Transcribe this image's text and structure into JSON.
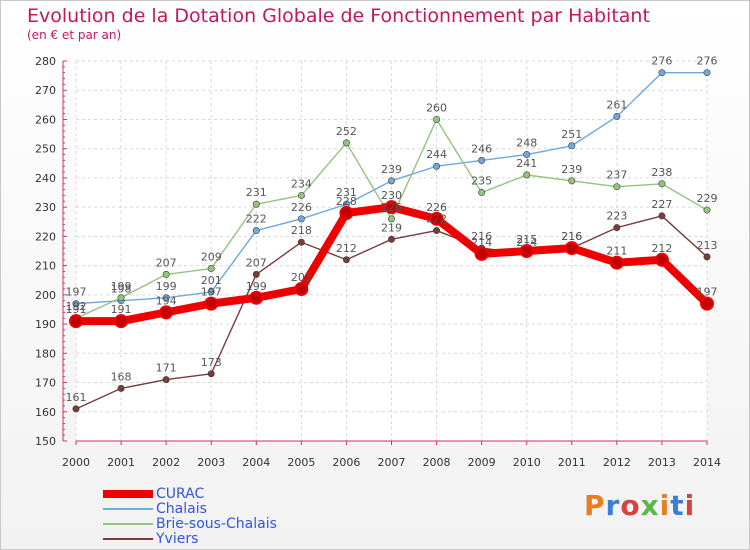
{
  "title": "Evolution de la Dotation Globale de Fonctionnement par Habitant",
  "subtitle": "(en € et par an)",
  "logo_text": "Proxiti",
  "colors": {
    "title": "#c2185b",
    "legend_text": "#3355dd",
    "logo": [
      "#e67e22",
      "#3a7fd5",
      "#d94040",
      "#58b947"
    ]
  },
  "chart_data": {
    "type": "line",
    "title": "Evolution de la Dotation Globale de Fonctionnement par Habitant",
    "subtitle": "(en € et par an)",
    "x": [
      2000,
      2001,
      2002,
      2003,
      2004,
      2005,
      2006,
      2007,
      2008,
      2009,
      2010,
      2011,
      2012,
      2013,
      2014
    ],
    "ylim": [
      150,
      280
    ],
    "yticks": [
      150,
      160,
      170,
      180,
      190,
      200,
      210,
      220,
      230,
      240,
      250,
      260,
      270,
      280
    ],
    "grid": true,
    "legend_position": "bottom-left",
    "series": [
      {
        "name": "CURAC",
        "color": "#ee0000",
        "values": [
          191,
          191,
          194,
          197,
          199,
          202,
          228,
          230,
          226,
          214,
          215,
          216,
          211,
          212,
          197
        ]
      },
      {
        "name": "Chalais",
        "color": "#6fa8dc",
        "values": [
          197,
          198,
          199,
          201,
          222,
          226,
          231,
          239,
          244,
          246,
          248,
          251,
          261,
          276,
          276
        ]
      },
      {
        "name": "Brie-sous-Chalais",
        "color": "#93c47d",
        "values": [
          192,
          199,
          207,
          209,
          231,
          234,
          252,
          226,
          260,
          235,
          241,
          239,
          237,
          238,
          229
        ]
      },
      {
        "name": "Yviers",
        "color": "#7b3b3b",
        "values": [
          161,
          168,
          171,
          173,
          207,
          218,
          212,
          219,
          222,
          216,
          214,
          216,
          223,
          227,
          213
        ]
      }
    ]
  }
}
